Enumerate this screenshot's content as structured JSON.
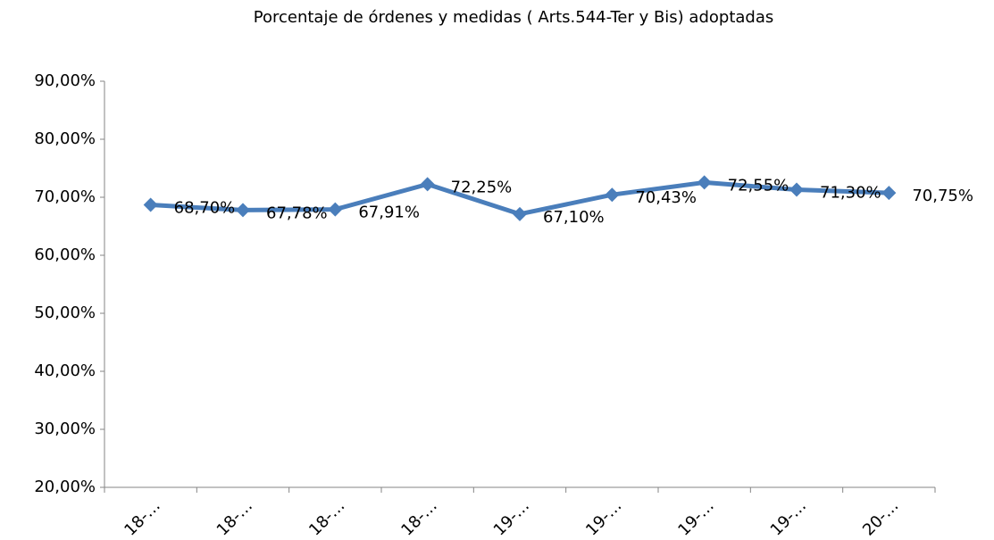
{
  "chart_data": {
    "type": "line",
    "title": "Porcentaje de órdenes y medidas ( Arts.544-Ter y Bis) adoptadas",
    "categories": [
      "18-…",
      "18-…",
      "18-…",
      "18-…",
      "19-…",
      "19-…",
      "19-…",
      "19-…",
      "20-…"
    ],
    "series": [
      {
        "name": "Porcentaje",
        "color": "#4a7ebb",
        "values": [
          68.7,
          67.78,
          67.91,
          72.25,
          67.1,
          70.43,
          72.55,
          71.3,
          70.75
        ],
        "value_labels": [
          "68,70%",
          "67,78%",
          "67,91%",
          "72,25%",
          "67,10%",
          "70,43%",
          "72,55%",
          "71,30%",
          "70,75%"
        ]
      }
    ],
    "ylim": [
      20,
      90
    ],
    "yticks": [
      {
        "value": 20,
        "label": "20,00%"
      },
      {
        "value": 30,
        "label": "30,00%"
      },
      {
        "value": 40,
        "label": "40,00%"
      },
      {
        "value": 50,
        "label": "50,00%"
      },
      {
        "value": 60,
        "label": "60,00%"
      },
      {
        "value": 70,
        "label": "70,00%"
      },
      {
        "value": 80,
        "label": "80,00%"
      },
      {
        "value": 90,
        "label": "90,00%"
      }
    ],
    "grid": false
  }
}
